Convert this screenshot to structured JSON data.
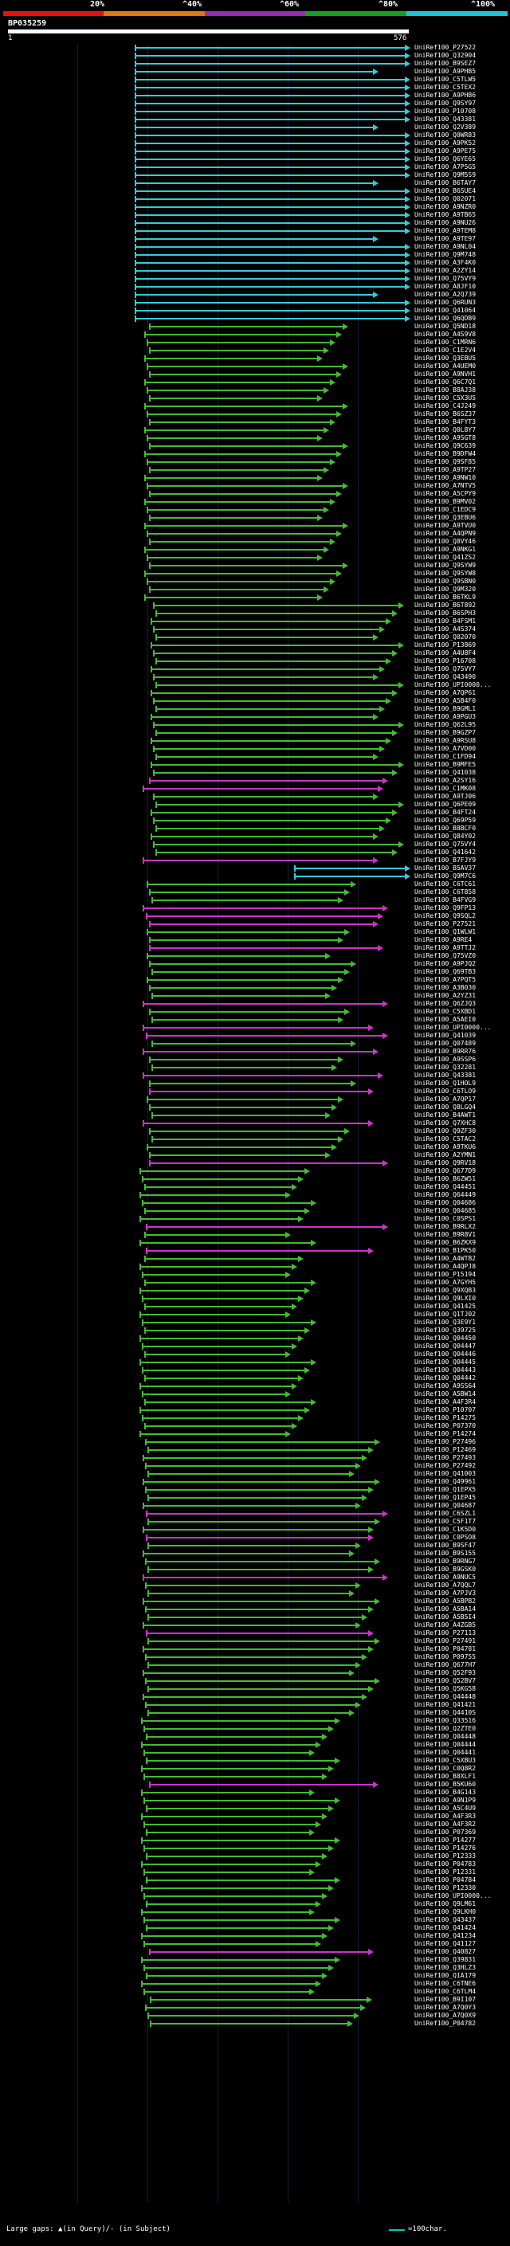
{
  "header": {
    "scale_labels": [
      "20%",
      "^40%",
      "^60%",
      "^80%",
      "^100%"
    ],
    "colors": [
      "#e81010",
      "#e07810",
      "#9a2ab0",
      "#18a020",
      "#18c8d8"
    ]
  },
  "query": {
    "name": "BP035259",
    "start": "1",
    "end": "576"
  },
  "legend": {
    "gaps": "Large gaps: ▲(in Query)/- (in Subject)",
    "scale": "=100char."
  },
  "hits": [
    {
      "id": "UniRef100_P27522",
      "c": "cyan"
    },
    {
      "id": "UniRef100_Q32904",
      "c": "cyan"
    },
    {
      "id": "UniRef100_B9SEZ7",
      "c": "cyan"
    },
    {
      "id": "UniRef100_A9PHB5",
      "c": "cyan"
    },
    {
      "id": "UniRef100_C5TLW5",
      "c": "cyan"
    },
    {
      "id": "UniRef100_C5TEX2",
      "c": "cyan"
    },
    {
      "id": "UniRef100_A9PHB6",
      "c": "cyan"
    },
    {
      "id": "UniRef100_Q9SY97",
      "c": "cyan"
    },
    {
      "id": "UniRef100_P10708",
      "c": "cyan"
    },
    {
      "id": "UniRef100_Q43381",
      "c": "cyan"
    },
    {
      "id": "UniRef100_Q2V389",
      "c": "cyan"
    },
    {
      "id": "UniRef100_Q0WR83",
      "c": "cyan"
    },
    {
      "id": "UniRef100_A9PK52",
      "c": "cyan"
    },
    {
      "id": "UniRef100_A9PE75",
      "c": "cyan"
    },
    {
      "id": "UniRef100_Q6YE65",
      "c": "cyan"
    },
    {
      "id": "UniRef100_A7P5G5",
      "c": "cyan"
    },
    {
      "id": "UniRef100_Q9M5S9",
      "c": "cyan"
    },
    {
      "id": "UniRef100_B6TAY7",
      "c": "cyan"
    },
    {
      "id": "UniRef100_B6SUE4",
      "c": "cyan"
    },
    {
      "id": "UniRef100_Q02071",
      "c": "cyan"
    },
    {
      "id": "UniRef100_A9NZR0",
      "c": "cyan"
    },
    {
      "id": "UniRef100_A9TB65",
      "c": "cyan"
    },
    {
      "id": "UniRef100_A9NU26",
      "c": "cyan"
    },
    {
      "id": "UniRef100_A9TEM8",
      "c": "cyan"
    },
    {
      "id": "UniRef100_A9TE97",
      "c": "cyan"
    },
    {
      "id": "UniRef100_A9NL04",
      "c": "cyan"
    },
    {
      "id": "UniRef100_Q9M748",
      "c": "cyan"
    },
    {
      "id": "UniRef100_A3F4K0",
      "c": "cyan"
    },
    {
      "id": "UniRef100_A2ZY14",
      "c": "cyan"
    },
    {
      "id": "UniRef100_Q75VY9",
      "c": "cyan"
    },
    {
      "id": "UniRef100_A8JF10",
      "c": "cyan"
    },
    {
      "id": "UniRef100_A2Q739",
      "c": "cyan"
    },
    {
      "id": "UniRef100_Q6RUN3",
      "c": "cyan"
    },
    {
      "id": "UniRef100_Q41064",
      "c": "cyan"
    },
    {
      "id": "UniRef100_Q6QDB9",
      "c": "cyan"
    },
    {
      "id": "UniRef100_Q5ND18",
      "c": "green"
    },
    {
      "id": "UniRef100_A4S9V8",
      "c": "green"
    },
    {
      "id": "UniRef100_C1MRN6",
      "c": "green"
    },
    {
      "id": "UniRef100_C1E2V4",
      "c": "green"
    },
    {
      "id": "UniRef100_Q3EBU5",
      "c": "green"
    },
    {
      "id": "UniRef100_A4UEM0",
      "c": "green"
    },
    {
      "id": "UniRef100_A9NVH1",
      "c": "green"
    },
    {
      "id": "UniRef100_Q6C7Q1",
      "c": "green"
    },
    {
      "id": "UniRef100_B8AJ38",
      "c": "green"
    },
    {
      "id": "UniRef100_C5X3U5",
      "c": "green"
    },
    {
      "id": "UniRef100_C4J249",
      "c": "green"
    },
    {
      "id": "UniRef100_B6SZ37",
      "c": "green"
    },
    {
      "id": "UniRef100_B4FYT3",
      "c": "green"
    },
    {
      "id": "UniRef100_Q0L8Y7",
      "c": "green"
    },
    {
      "id": "UniRef100_A9SGT8",
      "c": "green"
    },
    {
      "id": "UniRef100_Q9C639",
      "c": "green"
    },
    {
      "id": "UniRef100_B9DFW4",
      "c": "green"
    },
    {
      "id": "UniRef100_Q9SF85",
      "c": "green"
    },
    {
      "id": "UniRef100_A9TP27",
      "c": "green"
    },
    {
      "id": "UniRef100_A9NW10",
      "c": "green"
    },
    {
      "id": "UniRef100_A7NTV5",
      "c": "green"
    },
    {
      "id": "UniRef100_A5CPY9",
      "c": "green"
    },
    {
      "id": "UniRef100_B9MV02",
      "c": "green"
    },
    {
      "id": "UniRef100_C1EDC9",
      "c": "green"
    },
    {
      "id": "UniRef100_Q3EBU6",
      "c": "green"
    },
    {
      "id": "UniRef100_A9TVU0",
      "c": "green"
    },
    {
      "id": "UniRef100_A4QPN9",
      "c": "green"
    },
    {
      "id": "UniRef100_Q8VY46",
      "c": "green"
    },
    {
      "id": "UniRef100_A9NKG1",
      "c": "green"
    },
    {
      "id": "UniRef100_Q41ZS2",
      "c": "green"
    },
    {
      "id": "UniRef100_Q9SYW9",
      "c": "green"
    },
    {
      "id": "UniRef100_Q9SYW8",
      "c": "green"
    },
    {
      "id": "UniRef100_Q9SBN0",
      "c": "green"
    },
    {
      "id": "UniRef100_Q9M320",
      "c": "green"
    },
    {
      "id": "UniRef100_B6TKL9",
      "c": "green"
    },
    {
      "id": "UniRef100_B6T892",
      "c": "green"
    },
    {
      "id": "UniRef100_B6SPH3",
      "c": "green"
    },
    {
      "id": "UniRef100_B4FSM1",
      "c": "green"
    },
    {
      "id": "UniRef100_A4S374",
      "c": "green"
    },
    {
      "id": "UniRef100_Q02070",
      "c": "green"
    },
    {
      "id": "UniRef100_P13869",
      "c": "green"
    },
    {
      "id": "UniRef100_A4U8F4",
      "c": "green"
    },
    {
      "id": "UniRef100_P16708",
      "c": "green"
    },
    {
      "id": "UniRef100_Q75VY7",
      "c": "green"
    },
    {
      "id": "UniRef100_Q43490",
      "c": "green"
    },
    {
      "id": "UniRef100_UPI0000...",
      "c": "green"
    },
    {
      "id": "UniRef100_A7QP61",
      "c": "green"
    },
    {
      "id": "UniRef100_A5B4F0",
      "c": "green"
    },
    {
      "id": "UniRef100_B9GML1",
      "c": "green"
    },
    {
      "id": "UniRef100_A9PGU3",
      "c": "green"
    },
    {
      "id": "UniRef100_Q62L95",
      "c": "green"
    },
    {
      "id": "UniRef100_B9GZP7",
      "c": "green"
    },
    {
      "id": "UniRef100_A9RSU8",
      "c": "green"
    },
    {
      "id": "UniRef100_A7VD00",
      "c": "green"
    },
    {
      "id": "UniRef100_C1FD94",
      "c": "green"
    },
    {
      "id": "UniRef100_B9MFE5",
      "c": "green"
    },
    {
      "id": "UniRef100_Q41038",
      "c": "green"
    },
    {
      "id": "UniRef100_A2SY16",
      "c": "magenta"
    },
    {
      "id": "UniRef100_C1MK08",
      "c": "magenta"
    },
    {
      "id": "UniRef100_A9TJ06",
      "c": "green"
    },
    {
      "id": "UniRef100_Q6PE09",
      "c": "green"
    },
    {
      "id": "UniRef100_B4FT24",
      "c": "green"
    },
    {
      "id": "UniRef100_Q69P59",
      "c": "green"
    },
    {
      "id": "UniRef100_B8BCF0",
      "c": "green"
    },
    {
      "id": "UniRef100_Q84Y02",
      "c": "green"
    },
    {
      "id": "UniRef100_Q75VY4",
      "c": "green"
    },
    {
      "id": "UniRef100_Q41642",
      "c": "green"
    },
    {
      "id": "UniRef100_B7FJY9",
      "c": "magenta"
    },
    {
      "id": "UniRef100_B5AV37",
      "c": "cyan"
    },
    {
      "id": "UniRef100_Q9M7C6",
      "c": "cyan"
    },
    {
      "id": "UniRef100_C6TC61",
      "c": "green"
    },
    {
      "id": "UniRef100_C6T858",
      "c": "green"
    },
    {
      "id": "UniRef100_B4FVG9",
      "c": "green"
    },
    {
      "id": "UniRef100_Q9FP13",
      "c": "magenta"
    },
    {
      "id": "UniRef100_Q9SQL2",
      "c": "magenta"
    },
    {
      "id": "UniRef100_P27521",
      "c": "magenta"
    },
    {
      "id": "UniRef100_Q1WLW1",
      "c": "green"
    },
    {
      "id": "UniRef100_A9RE4",
      "c": "green"
    },
    {
      "id": "UniRef100_A9TTJ2",
      "c": "magenta"
    },
    {
      "id": "UniRef100_Q75VZ0",
      "c": "green"
    },
    {
      "id": "UniRef100_A9PJQ2",
      "c": "green"
    },
    {
      "id": "UniRef100_Q69TB3",
      "c": "green"
    },
    {
      "id": "UniRef100_A7PQT5",
      "c": "green"
    },
    {
      "id": "UniRef100_A3B030",
      "c": "green"
    },
    {
      "id": "UniRef100_A2YZ31",
      "c": "green"
    },
    {
      "id": "UniRef100_Q6ZJQ3",
      "c": "magenta"
    },
    {
      "id": "UniRef100_C5XBD1",
      "c": "green"
    },
    {
      "id": "UniRef100_A5AEI0",
      "c": "green"
    },
    {
      "id": "UniRef100_UPI0000...",
      "c": "magenta"
    },
    {
      "id": "UniRef100_Q41039",
      "c": "magenta"
    },
    {
      "id": "UniRef100_Q07489",
      "c": "green"
    },
    {
      "id": "UniRef100_B9RR76",
      "c": "magenta"
    },
    {
      "id": "UniRef100_A9SSP6",
      "c": "green"
    },
    {
      "id": "UniRef100_Q32281",
      "c": "green"
    },
    {
      "id": "UniRef100_Q43381",
      "c": "magenta"
    },
    {
      "id": "UniRef100_Q1HOL9",
      "c": "green"
    },
    {
      "id": "UniRef100_C6TLO9",
      "c": "magenta"
    },
    {
      "id": "UniRef100_A7QP17",
      "c": "green"
    },
    {
      "id": "UniRef100_Q8LGQ4",
      "c": "green"
    },
    {
      "id": "UniRef100_B4AWT1",
      "c": "green"
    },
    {
      "id": "UniRef100_Q7XHC8",
      "c": "magenta"
    },
    {
      "id": "UniRef100_Q9ZF30",
      "c": "green"
    },
    {
      "id": "UniRef100_C5TAC2",
      "c": "green"
    },
    {
      "id": "UniRef100_A9TKU6",
      "c": "green"
    },
    {
      "id": "UniRef100_A2YMN1",
      "c": "green"
    },
    {
      "id": "UniRef100_Q9RV18",
      "c": "magenta"
    },
    {
      "id": "UniRef100_Q677D9",
      "c": "green"
    },
    {
      "id": "UniRef100_B6ZW51",
      "c": "green"
    },
    {
      "id": "UniRef100_Q44451",
      "c": "green"
    },
    {
      "id": "UniRef100_Q64449",
      "c": "green"
    },
    {
      "id": "UniRef100_Q04686",
      "c": "green"
    },
    {
      "id": "UniRef100_Q04685",
      "c": "green"
    },
    {
      "id": "UniRef100_C0SPS1",
      "c": "green"
    },
    {
      "id": "UniRef100_B9RLX2",
      "c": "magenta"
    },
    {
      "id": "UniRef100_B9R8V1",
      "c": "green"
    },
    {
      "id": "UniRef100_B6ZKX9",
      "c": "green"
    },
    {
      "id": "UniRef100_B1PK50",
      "c": "magenta"
    },
    {
      "id": "UniRef100_A4WTB2",
      "c": "green"
    },
    {
      "id": "UniRef100_A4QPJ8",
      "c": "green"
    },
    {
      "id": "UniRef100_P15194",
      "c": "green"
    },
    {
      "id": "UniRef100_A7GYH5",
      "c": "green"
    },
    {
      "id": "UniRef100_Q9XQB3",
      "c": "green"
    },
    {
      "id": "UniRef100_Q9LXI0",
      "c": "green"
    },
    {
      "id": "UniRef100_Q41425",
      "c": "green"
    },
    {
      "id": "UniRef100_Q1TJ02",
      "c": "green"
    },
    {
      "id": "UniRef100_Q3E9Y1",
      "c": "green"
    },
    {
      "id": "UniRef100_Q39725",
      "c": "green"
    },
    {
      "id": "UniRef100_Q04450",
      "c": "green"
    },
    {
      "id": "UniRef100_Q04447",
      "c": "green"
    },
    {
      "id": "UniRef100_Q04446",
      "c": "green"
    },
    {
      "id": "UniRef100_Q04445",
      "c": "green"
    },
    {
      "id": "UniRef100_Q04443",
      "c": "green"
    },
    {
      "id": "UniRef100_Q04442",
      "c": "green"
    },
    {
      "id": "UniRef100_A9SS64",
      "c": "green"
    },
    {
      "id": "UniRef100_A5BW14",
      "c": "green"
    },
    {
      "id": "UniRef100_A4F3R4",
      "c": "green"
    },
    {
      "id": "UniRef100_P10707",
      "c": "green"
    },
    {
      "id": "UniRef100_P14275",
      "c": "green"
    },
    {
      "id": "UniRef100_P07370",
      "c": "green"
    },
    {
      "id": "UniRef100_P14274",
      "c": "green"
    },
    {
      "id": "UniRef100_P27496",
      "c": "green"
    },
    {
      "id": "UniRef100_P12469",
      "c": "green"
    },
    {
      "id": "UniRef100_P27493",
      "c": "green"
    },
    {
      "id": "UniRef100_P27492",
      "c": "green"
    },
    {
      "id": "UniRef100_Q41003",
      "c": "green"
    },
    {
      "id": "UniRef100_Q49961",
      "c": "green"
    },
    {
      "id": "UniRef100_Q1EPX5",
      "c": "green"
    },
    {
      "id": "UniRef100_Q1EP45",
      "c": "green"
    },
    {
      "id": "UniRef100_Q04687",
      "c": "green"
    },
    {
      "id": "UniRef100_C6SZL1",
      "c": "magenta"
    },
    {
      "id": "UniRef100_C5F1T7",
      "c": "green"
    },
    {
      "id": "UniRef100_C1K5D0",
      "c": "green"
    },
    {
      "id": "UniRef100_C0PSO8",
      "c": "magenta"
    },
    {
      "id": "UniRef100_B9SF47",
      "c": "green"
    },
    {
      "id": "UniRef100_B9S155",
      "c": "green"
    },
    {
      "id": "UniRef100_B9RNG7",
      "c": "green"
    },
    {
      "id": "UniRef100_B9GSK0",
      "c": "green"
    },
    {
      "id": "UniRef100_A9NUC5",
      "c": "magenta"
    },
    {
      "id": "UniRef100_A7QQL7",
      "c": "green"
    },
    {
      "id": "UniRef100_A7PJV3",
      "c": "green"
    },
    {
      "id": "UniRef100_A5BPB2",
      "c": "green"
    },
    {
      "id": "UniRef100_A5BA14",
      "c": "green"
    },
    {
      "id": "UniRef100_A5B5I4",
      "c": "green"
    },
    {
      "id": "UniRef100_A4ZGB5",
      "c": "green"
    },
    {
      "id": "UniRef100_P27113",
      "c": "magenta"
    },
    {
      "id": "UniRef100_P27491",
      "c": "green"
    },
    {
      "id": "UniRef100_P04781",
      "c": "green"
    },
    {
      "id": "UniRef100_P09755",
      "c": "green"
    },
    {
      "id": "UniRef100_Q677H7",
      "c": "green"
    },
    {
      "id": "UniRef100_Q52F93",
      "c": "green"
    },
    {
      "id": "UniRef100_Q52BV7",
      "c": "green"
    },
    {
      "id": "UniRef100_Q5KG58",
      "c": "green"
    },
    {
      "id": "UniRef100_Q44448",
      "c": "green"
    },
    {
      "id": "UniRef100_Q41421",
      "c": "green"
    },
    {
      "id": "UniRef100_Q4410S",
      "c": "green"
    },
    {
      "id": "UniRef100_Q33516",
      "c": "green"
    },
    {
      "id": "UniRef100_Q2ZTE0",
      "c": "green"
    },
    {
      "id": "UniRef100_Q04448",
      "c": "green"
    },
    {
      "id": "UniRef100_Q04444",
      "c": "green"
    },
    {
      "id": "UniRef100_Q04441",
      "c": "green"
    },
    {
      "id": "UniRef100_C5XBU3",
      "c": "green"
    },
    {
      "id": "UniRef100_C0Q8R2",
      "c": "green"
    },
    {
      "id": "UniRef100_B8XLF1",
      "c": "green"
    },
    {
      "id": "UniRef100_B5KU60",
      "c": "magenta"
    },
    {
      "id": "UniRef100_B4G143",
      "c": "green"
    },
    {
      "id": "UniRef100_A9N1P9",
      "c": "green"
    },
    {
      "id": "UniRef100_A5C4U9",
      "c": "green"
    },
    {
      "id": "UniRef100_A4F3R3",
      "c": "green"
    },
    {
      "id": "UniRef100_A4F3R2",
      "c": "green"
    },
    {
      "id": "UniRef100_P07369",
      "c": "green"
    },
    {
      "id": "UniRef100_P14277",
      "c": "green"
    },
    {
      "id": "UniRef100_P14276",
      "c": "green"
    },
    {
      "id": "UniRef100_P12333",
      "c": "green"
    },
    {
      "id": "UniRef100_P04783",
      "c": "green"
    },
    {
      "id": "UniRef100_P12331",
      "c": "green"
    },
    {
      "id": "UniRef100_P04784",
      "c": "green"
    },
    {
      "id": "UniRef100_P12330",
      "c": "green"
    },
    {
      "id": "UniRef100_UPI0000...",
      "c": "green"
    },
    {
      "id": "UniRef100_Q9LM61",
      "c": "green"
    },
    {
      "id": "UniRef100_Q9LKH0",
      "c": "green"
    },
    {
      "id": "UniRef100_Q43437",
      "c": "green"
    },
    {
      "id": "UniRef100_Q41424",
      "c": "green"
    },
    {
      "id": "UniRef100_Q41234",
      "c": "green"
    },
    {
      "id": "UniRef100_Q41127",
      "c": "green"
    },
    {
      "id": "UniRef100_Q40827",
      "c": "magenta"
    },
    {
      "id": "UniRef100_Q39831",
      "c": "green"
    },
    {
      "id": "UniRef100_Q3HLZ3",
      "c": "green"
    },
    {
      "id": "UniRef100_Q1A179",
      "c": "green"
    },
    {
      "id": "UniRef100_C6TNE6",
      "c": "green"
    },
    {
      "id": "UniRef100_C6TLM4",
      "c": "green"
    },
    {
      "id": "UniRef100_B9I107",
      "c": "green"
    },
    {
      "id": "UniRef100_A7Q0Y3",
      "c": "green"
    },
    {
      "id": "UniRef100_A7Q0X9",
      "c": "green"
    },
    {
      "id": "UniRef100_P04782",
      "c": "green"
    }
  ]
}
